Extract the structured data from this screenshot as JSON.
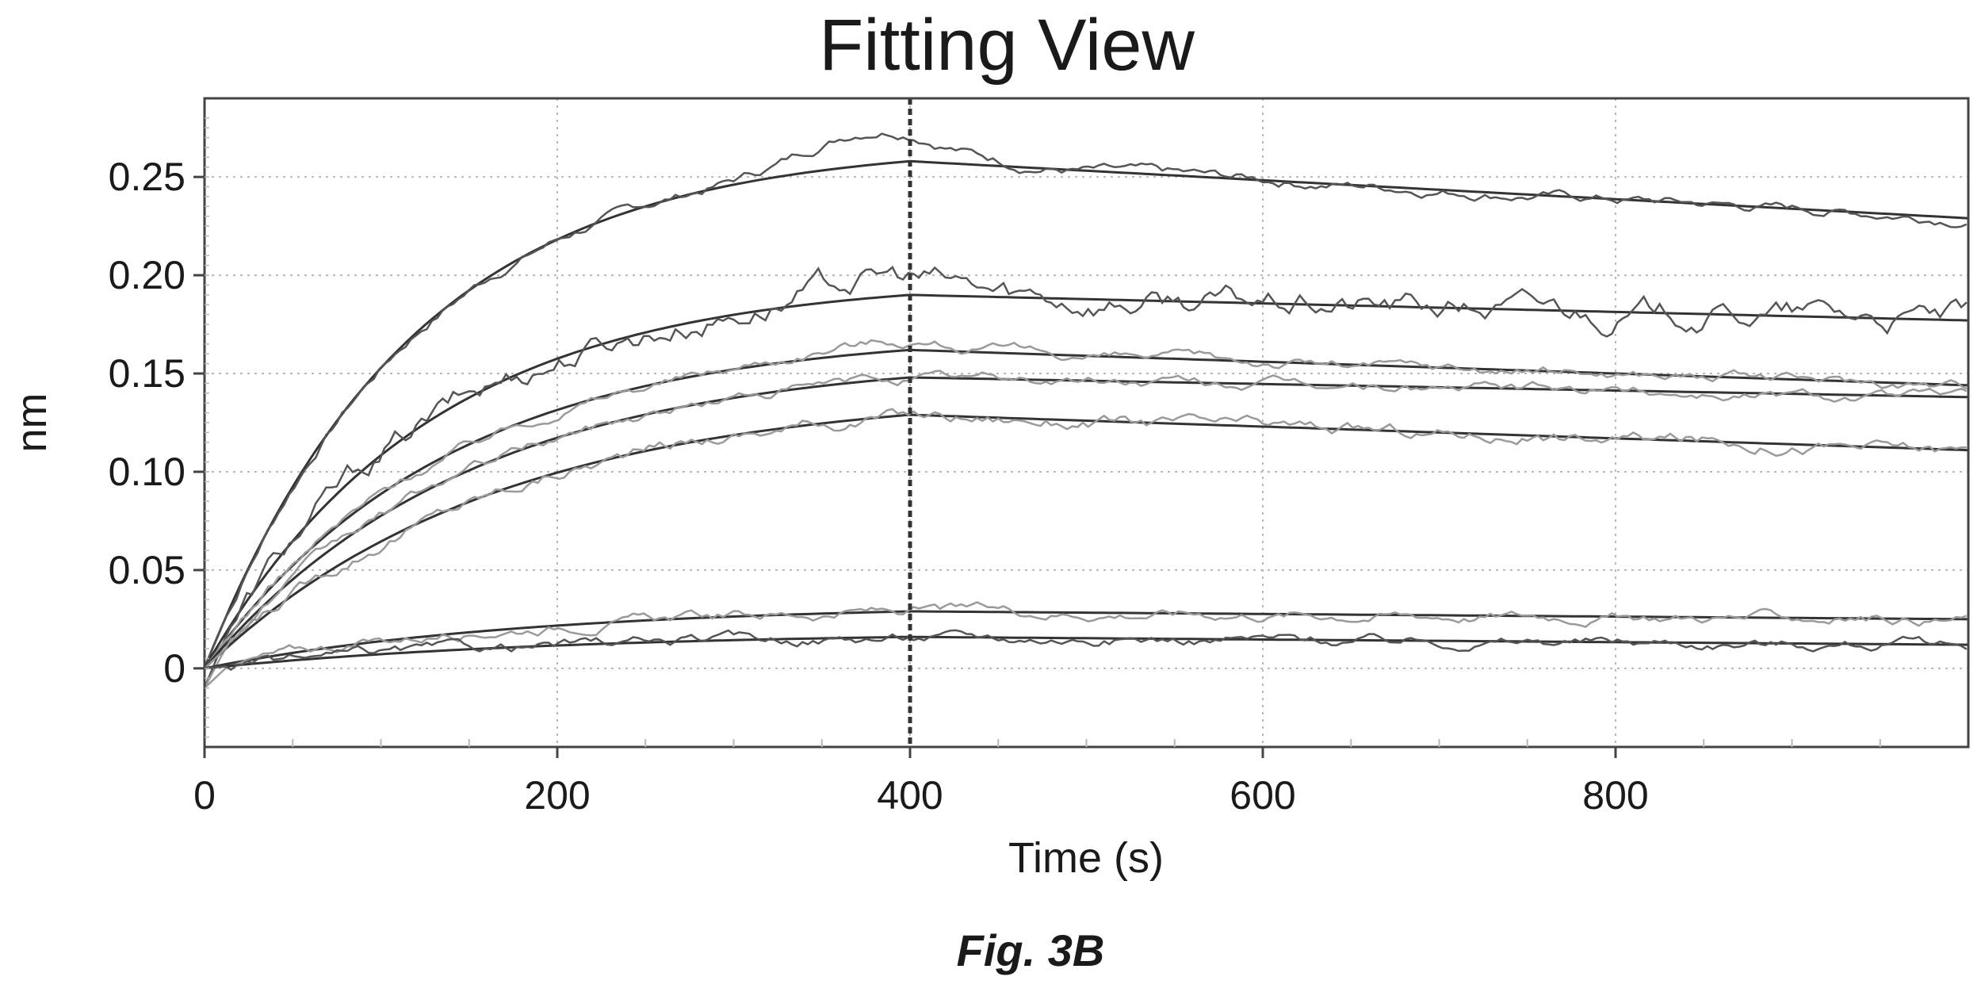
{
  "figure": {
    "caption": "Fig. 3B"
  },
  "chart_data": {
    "type": "line",
    "title": "Fitting View",
    "xlabel": "Time (s)",
    "ylabel": "nm",
    "xlim": [
      0,
      1000
    ],
    "ylim": [
      -0.04,
      0.29
    ],
    "xticks": [
      0,
      200,
      400,
      600,
      800
    ],
    "xtick_labels": [
      "0",
      "200",
      "400",
      "600",
      "800"
    ],
    "yticks": [
      0,
      0.05,
      0.1,
      0.15,
      0.2,
      0.25
    ],
    "ytick_labels": [
      "0",
      "0.05",
      "0.10",
      "0.15",
      "0.20",
      "0.25"
    ],
    "grid": true,
    "legend": "none",
    "association_end": 400,
    "colors": {
      "axis": "#444444",
      "grid": "#b8b8b8",
      "fit": "#333333",
      "data_dark": "#555555",
      "data_light": "#9a9a9a",
      "marker_line": "#333333"
    },
    "series": [
      {
        "plateau": 0.258,
        "end": 0.229,
        "noise": 0.004,
        "overshoot": 0.018,
        "shade": "dark"
      },
      {
        "plateau": 0.19,
        "end": 0.177,
        "noise": 0.01,
        "overshoot": 0.01,
        "shade": "dark"
      },
      {
        "plateau": 0.162,
        "end": 0.144,
        "noise": 0.004,
        "overshoot": 0.006,
        "shade": "light"
      },
      {
        "plateau": 0.148,
        "end": 0.138,
        "noise": 0.004,
        "overshoot": 0.0,
        "shade": "light"
      },
      {
        "plateau": 0.129,
        "end": 0.111,
        "noise": 0.005,
        "overshoot": 0.0,
        "shade": "light"
      },
      {
        "plateau": 0.029,
        "end": 0.025,
        "noise": 0.004,
        "overshoot": 0.0,
        "shade": "light"
      },
      {
        "plateau": 0.016,
        "end": 0.012,
        "noise": 0.004,
        "overshoot": 0.0,
        "shade": "dark"
      }
    ]
  }
}
